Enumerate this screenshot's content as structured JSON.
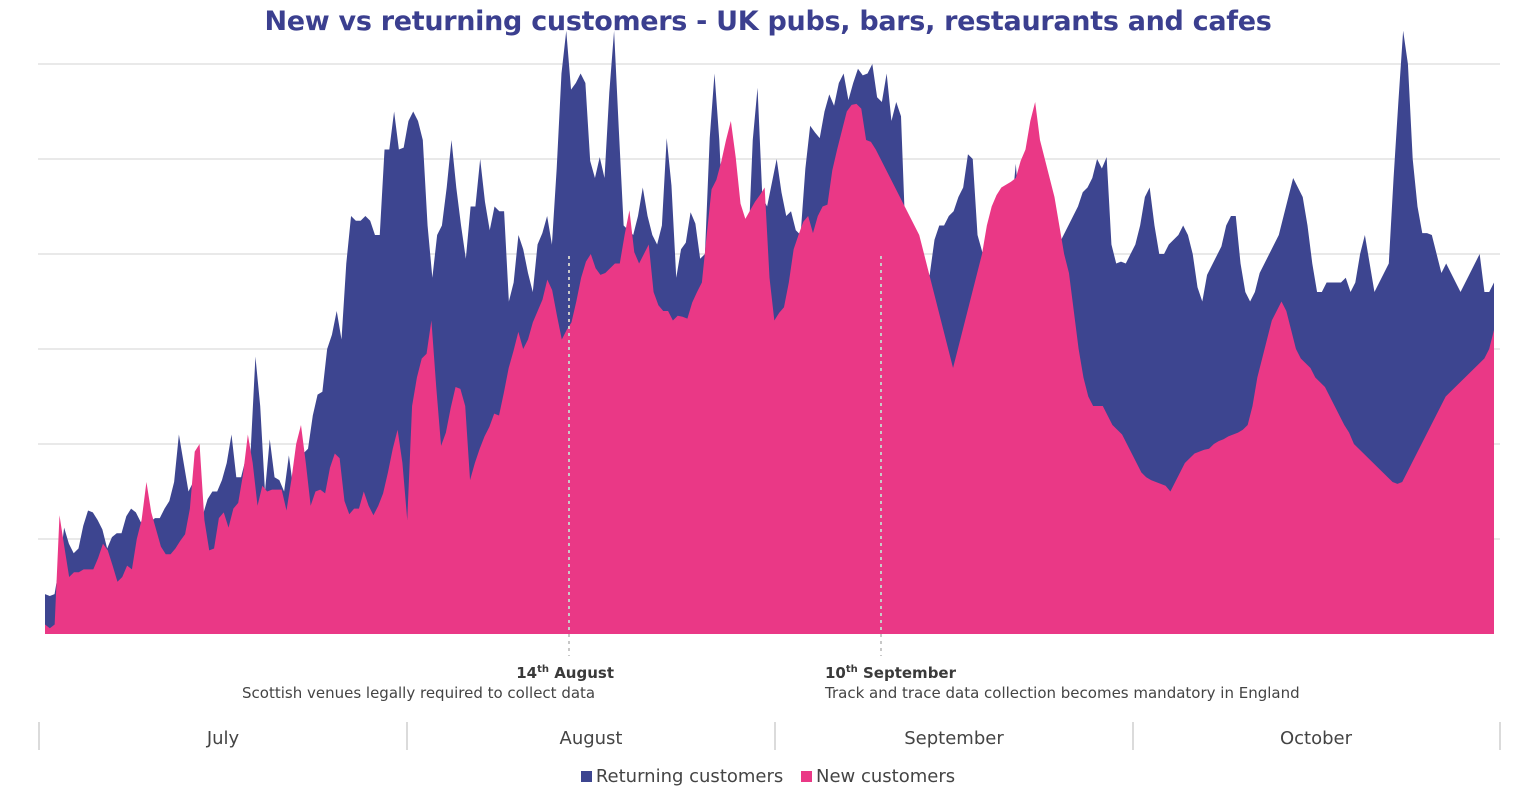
{
  "chart_data": {
    "type": "area",
    "stacked": false,
    "title": "New vs returning customers - UK pubs, bars, restaurants and cafes",
    "xlabel": "",
    "ylabel": "",
    "ylim": [
      0,
      600
    ],
    "grid": true,
    "legend_position": "bottom",
    "months": [
      "July",
      "August",
      "September",
      "October"
    ],
    "series": [
      {
        "name": "Returning customers",
        "color": "#3d4590",
        "values": [
          42,
          40,
          42,
          72,
          112,
          95,
          85,
          90,
          114,
          130,
          128,
          120,
          110,
          90,
          102,
          106,
          106,
          124,
          132,
          128,
          118,
          112,
          118,
          122,
          122,
          132,
          140,
          160,
          210,
          180,
          150,
          160,
          145,
          125,
          142,
          150,
          150,
          162,
          180,
          210,
          165,
          165,
          185,
          192,
          292,
          240,
          150,
          205,
          165,
          162,
          150,
          188,
          150,
          175,
          190,
          195,
          230,
          252,
          255,
          300,
          315,
          340,
          310,
          390,
          440,
          435,
          435,
          440,
          435,
          420,
          420,
          510,
          510,
          550,
          510,
          512,
          540,
          550,
          540,
          520,
          430,
          375,
          420,
          430,
          470,
          520,
          470,
          430,
          395,
          450,
          450,
          500,
          455,
          425,
          450,
          445,
          445,
          350,
          370,
          420,
          405,
          380,
          360,
          410,
          422,
          440,
          410,
          490,
          590,
          635,
          573,
          580,
          590,
          580,
          498,
          480,
          502,
          480,
          570,
          635,
          530,
          430,
          425,
          420,
          440,
          470,
          440,
          420,
          410,
          430,
          522,
          472,
          375,
          405,
          412,
          444,
          432,
          395,
          400,
          522,
          590,
          520,
          410,
          390,
          420,
          430,
          410,
          400,
          520,
          575,
          460,
          450,
          475,
          500,
          465,
          440,
          445,
          425,
          420,
          490,
          535,
          528,
          522,
          550,
          568,
          556,
          580,
          590,
          562,
          580,
          595,
          588,
          590,
          600,
          565,
          560,
          590,
          540,
          560,
          545,
          410,
          395,
          410,
          415,
          360,
          378,
          415,
          430,
          430,
          440,
          445,
          460,
          470,
          505,
          500,
          420,
          402,
          402,
          410,
          420,
          410,
          420,
          440,
          495,
          430,
          425,
          444,
          460,
          470,
          450,
          430,
          410,
          410,
          420,
          430,
          440,
          450,
          465,
          470,
          480,
          500,
          490,
          502,
          410,
          390,
          392,
          390,
          400,
          410,
          430,
          460,
          470,
          430,
          400,
          400,
          410,
          415,
          420,
          430,
          420,
          400,
          365,
          350,
          378,
          388,
          398,
          408,
          430,
          440,
          440,
          390,
          360,
          350,
          360,
          380,
          390,
          400,
          410,
          420,
          440,
          460,
          480,
          470,
          460,
          430,
          390,
          360,
          360,
          370,
          370,
          370,
          370,
          375,
          360,
          370,
          400,
          420,
          390,
          360,
          370,
          380,
          390,
          480,
          560,
          635,
          600,
          500,
          450,
          422,
          422,
          420,
          400,
          380,
          390,
          380,
          370,
          360,
          370,
          380,
          390,
          400,
          360,
          360,
          370
        ]
      },
      {
        "name": "New customers",
        "color": "#ea3886",
        "values": [
          10,
          6,
          10,
          125,
          92,
          60,
          65,
          65,
          68,
          68,
          68,
          80,
          95,
          88,
          72,
          55,
          60,
          72,
          68,
          100,
          120,
          160,
          128,
          110,
          92,
          84,
          84,
          90,
          98,
          105,
          132,
          192,
          200,
          120,
          88,
          90,
          122,
          128,
          112,
          132,
          138,
          168,
          210,
          180,
          135,
          156,
          150,
          152,
          152,
          152,
          130,
          162,
          200,
          220,
          180,
          135,
          150,
          152,
          148,
          175,
          190,
          185,
          140,
          126,
          132,
          132,
          150,
          135,
          125,
          135,
          148,
          170,
          195,
          215,
          180,
          120,
          240,
          270,
          290,
          295,
          330,
          260,
          198,
          212,
          238,
          260,
          258,
          240,
          162,
          180,
          195,
          208,
          218,
          232,
          230,
          254,
          280,
          298,
          318,
          300,
          310,
          328,
          340,
          352,
          373,
          362,
          335,
          310,
          320,
          328,
          350,
          375,
          392,
          400,
          385,
          378,
          380,
          385,
          390,
          390,
          420,
          446,
          402,
          390,
          400,
          410,
          360,
          346,
          340,
          340,
          330,
          335,
          334,
          332,
          349,
          360,
          370,
          420,
          468,
          478,
          497,
          520,
          540,
          502,
          453,
          437,
          446,
          455,
          462,
          470,
          375,
          330,
          338,
          344,
          370,
          405,
          420,
          434,
          440,
          422,
          440,
          450,
          452,
          488,
          510,
          530,
          550,
          557,
          558,
          553,
          520,
          518,
          510,
          500,
          490,
          480,
          470,
          460,
          450,
          440,
          430,
          420,
          400,
          380,
          360,
          340,
          320,
          300,
          280,
          300,
          320,
          340,
          360,
          380,
          400,
          430,
          450,
          462,
          470,
          473,
          476,
          480,
          498,
          510,
          540,
          560,
          520,
          500,
          480,
          460,
          430,
          400,
          380,
          340,
          300,
          270,
          250,
          240,
          240,
          240,
          230,
          220,
          215,
          210,
          200,
          190,
          180,
          170,
          165,
          162,
          160,
          158,
          156,
          150,
          160,
          170,
          180,
          185,
          190,
          192,
          194,
          195,
          200,
          203,
          205,
          208,
          210,
          212,
          215,
          220,
          240,
          270,
          290,
          310,
          330,
          340,
          350,
          340,
          320,
          300,
          290,
          285,
          280,
          270,
          265,
          260,
          250,
          240,
          230,
          220,
          212,
          200,
          195,
          190,
          185,
          180,
          175,
          170,
          165,
          160,
          158,
          160,
          170,
          180,
          190,
          200,
          210,
          220,
          230,
          240,
          250,
          255,
          260,
          265,
          270,
          275,
          280,
          285,
          290,
          300,
          320
        ]
      }
    ],
    "annotations": [
      {
        "title_day": "14",
        "title_suffix": "th",
        "title_month": " August",
        "text": "Scottish venues legally required to collect data"
      },
      {
        "title_day": "10",
        "title_suffix": "th",
        "title_month": " September",
        "text": "Track and trace data collection becomes mandatory in England"
      }
    ]
  }
}
